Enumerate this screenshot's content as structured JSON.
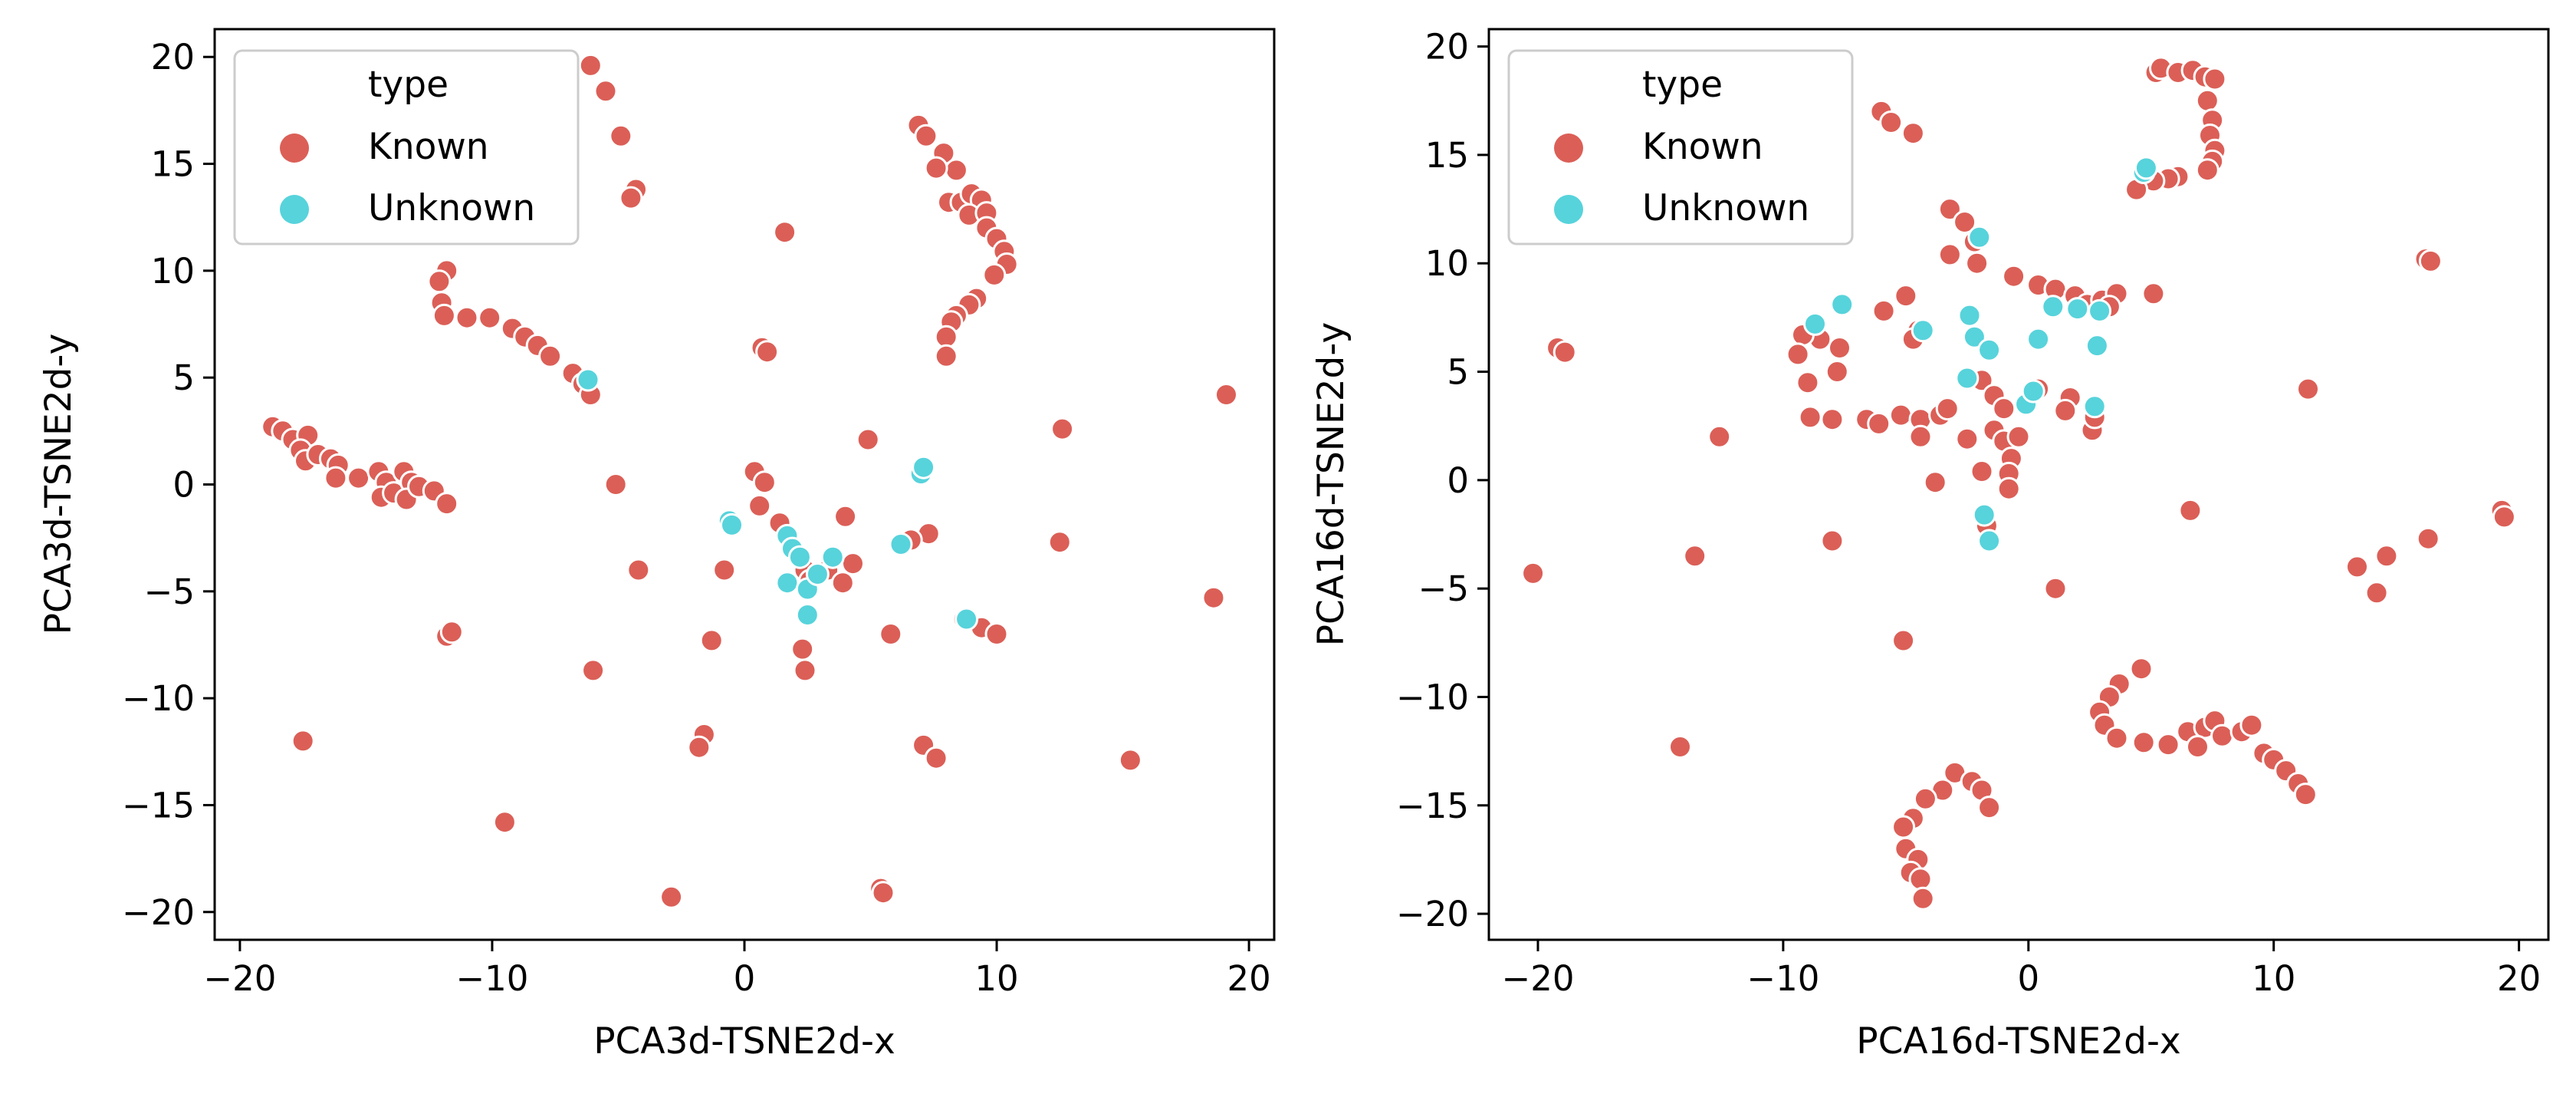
{
  "chart_data": [
    {
      "type": "scatter",
      "xlabel": "PCA3d-TSNE2d-x",
      "ylabel": "PCA3d-TSNE2d-y",
      "xlim": [
        -21,
        21
      ],
      "ylim": [
        -21.3,
        21.3
      ],
      "xticks": [
        -20,
        -10,
        0,
        10,
        20
      ],
      "xtick_labels": [
        "−20",
        "−10",
        "0",
        "10",
        "20"
      ],
      "yticks": [
        20,
        15,
        10,
        5,
        0,
        -5,
        -10,
        -15,
        -20
      ],
      "ytick_labels": [
        "20",
        "15",
        "10",
        "5",
        "0",
        "−5",
        "−10",
        "−15",
        "−20"
      ],
      "legend": {
        "title": "type",
        "placement": "top-left",
        "entries": [
          "Known",
          "Unknown"
        ]
      },
      "series": [
        {
          "name": "Known",
          "color": "#db5f57",
          "points": [
            [
              -6.1,
              19.6
            ],
            [
              -5.5,
              18.4
            ],
            [
              -4.9,
              16.3
            ],
            [
              -4.3,
              13.8
            ],
            [
              -4.5,
              13.4
            ],
            [
              1.6,
              11.8
            ],
            [
              -11.8,
              10.0
            ],
            [
              -12.1,
              9.5
            ],
            [
              -12.0,
              8.5
            ],
            [
              -11.9,
              7.9
            ],
            [
              -11.0,
              7.8
            ],
            [
              -10.1,
              7.8
            ],
            [
              -9.2,
              7.3
            ],
            [
              -8.7,
              6.9
            ],
            [
              -8.2,
              6.5
            ],
            [
              -7.7,
              6.0
            ],
            [
              -6.8,
              5.2
            ],
            [
              -6.4,
              4.7
            ],
            [
              -6.1,
              4.2
            ],
            [
              0.7,
              6.4
            ],
            [
              0.9,
              6.2
            ],
            [
              -18.7,
              2.7
            ],
            [
              -18.3,
              2.5
            ],
            [
              -17.9,
              2.1
            ],
            [
              -17.3,
              2.3
            ],
            [
              -17.6,
              1.6
            ],
            [
              -17.4,
              1.1
            ],
            [
              -16.9,
              1.4
            ],
            [
              -16.4,
              1.2
            ],
            [
              -16.1,
              0.9
            ],
            [
              -16.2,
              0.3
            ],
            [
              -15.3,
              0.3
            ],
            [
              -14.5,
              0.6
            ],
            [
              -14.2,
              0.1
            ],
            [
              -14.4,
              -0.6
            ],
            [
              -13.9,
              -0.4
            ],
            [
              -13.5,
              0.6
            ],
            [
              -13.2,
              0.1
            ],
            [
              -13.4,
              -0.7
            ],
            [
              -12.9,
              -0.1
            ],
            [
              -12.3,
              -0.3
            ],
            [
              -11.8,
              -0.9
            ],
            [
              -11.8,
              -7.1
            ],
            [
              -11.6,
              -6.9
            ],
            [
              6.9,
              16.8
            ],
            [
              7.2,
              16.3
            ],
            [
              7.6,
              14.8
            ],
            [
              7.9,
              15.5
            ],
            [
              8.4,
              14.7
            ],
            [
              7.6,
              14.8
            ],
            [
              8.1,
              13.2
            ],
            [
              8.6,
              13.2
            ],
            [
              9.0,
              13.6
            ],
            [
              9.4,
              13.3
            ],
            [
              8.9,
              12.6
            ],
            [
              9.6,
              12.7
            ],
            [
              9.6,
              12.0
            ],
            [
              10.0,
              11.5
            ],
            [
              10.3,
              10.9
            ],
            [
              10.4,
              10.3
            ],
            [
              9.9,
              9.8
            ],
            [
              9.2,
              8.7
            ],
            [
              8.9,
              8.4
            ],
            [
              8.4,
              7.9
            ],
            [
              8.2,
              7.6
            ],
            [
              8.0,
              6.9
            ],
            [
              8.0,
              6.0
            ],
            [
              4.9,
              2.1
            ],
            [
              12.6,
              2.6
            ],
            [
              19.1,
              4.2
            ],
            [
              0.4,
              0.6
            ],
            [
              0.8,
              0.1
            ],
            [
              0.6,
              -1.0
            ],
            [
              1.4,
              -1.8
            ],
            [
              -5.1,
              0.0
            ],
            [
              -4.2,
              -4.0
            ],
            [
              -0.8,
              -4.0
            ],
            [
              2.2,
              -3.3
            ],
            [
              2.4,
              -4.0
            ],
            [
              2.6,
              -4.5
            ],
            [
              3.3,
              -4.0
            ],
            [
              3.9,
              -4.6
            ],
            [
              4.3,
              -3.7
            ],
            [
              4.0,
              -1.5
            ],
            [
              2.3,
              -7.7
            ],
            [
              2.4,
              -8.7
            ],
            [
              7.3,
              -2.3
            ],
            [
              6.6,
              -2.6
            ],
            [
              12.5,
              -2.7
            ],
            [
              8.7,
              -6.3
            ],
            [
              9.4,
              -6.7
            ],
            [
              10.0,
              -7.0
            ],
            [
              5.8,
              -7.0
            ],
            [
              18.6,
              -5.3
            ],
            [
              -6.0,
              -8.7
            ],
            [
              -1.3,
              -7.3
            ],
            [
              -17.5,
              -12.0
            ],
            [
              -1.6,
              -11.7
            ],
            [
              -1.8,
              -12.3
            ],
            [
              7.1,
              -12.2
            ],
            [
              7.6,
              -12.8
            ],
            [
              15.3,
              -12.9
            ],
            [
              -9.5,
              -15.8
            ],
            [
              -2.9,
              -19.3
            ],
            [
              5.4,
              -18.9
            ],
            [
              5.5,
              -19.1
            ]
          ]
        },
        {
          "name": "Unknown",
          "color": "#57d3db",
          "points": [
            [
              -6.2,
              4.9
            ],
            [
              -0.6,
              -1.7
            ],
            [
              -0.5,
              -1.9
            ],
            [
              1.7,
              -2.4
            ],
            [
              1.9,
              -3.0
            ],
            [
              2.2,
              -3.4
            ],
            [
              1.7,
              -4.6
            ],
            [
              2.5,
              -4.9
            ],
            [
              2.9,
              -4.2
            ],
            [
              3.5,
              -3.4
            ],
            [
              2.5,
              -6.1
            ],
            [
              7.0,
              0.5
            ],
            [
              7.1,
              0.8
            ],
            [
              6.2,
              -2.8
            ],
            [
              8.8,
              -6.3
            ]
          ]
        }
      ]
    },
    {
      "type": "scatter",
      "xlabel": "PCA16d-TSNE2d-x",
      "ylabel": "PCA16d-TSNE2d-y",
      "xlim": [
        -22,
        21.2
      ],
      "ylim": [
        -21.2,
        20.8
      ],
      "xticks": [
        -20,
        -10,
        0,
        10,
        20
      ],
      "xtick_labels": [
        "−20",
        "−10",
        "0",
        "10",
        "20"
      ],
      "yticks": [
        20,
        15,
        10,
        5,
        0,
        -5,
        -10,
        -15,
        -20
      ],
      "ytick_labels": [
        "20",
        "15",
        "10",
        "5",
        "0",
        "−5",
        "−10",
        "−15",
        "−20"
      ],
      "legend": {
        "title": "type",
        "placement": "top-left",
        "entries": [
          "Known",
          "Unknown"
        ]
      },
      "series": [
        {
          "name": "Known",
          "color": "#db5f57",
          "points": [
            [
              5.2,
              18.8
            ],
            [
              5.4,
              19.0
            ],
            [
              6.1,
              18.8
            ],
            [
              6.7,
              18.9
            ],
            [
              7.2,
              18.6
            ],
            [
              7.6,
              18.5
            ],
            [
              7.3,
              17.5
            ],
            [
              7.5,
              16.6
            ],
            [
              7.4,
              15.9
            ],
            [
              7.6,
              15.2
            ],
            [
              7.5,
              14.7
            ],
            [
              7.3,
              14.3
            ],
            [
              6.1,
              14.0
            ],
            [
              5.7,
              13.9
            ],
            [
              5.1,
              13.8
            ],
            [
              4.4,
              13.4
            ],
            [
              -6.0,
              17.0
            ],
            [
              -5.6,
              16.5
            ],
            [
              -4.7,
              16.0
            ],
            [
              16.2,
              10.2
            ],
            [
              16.4,
              10.1
            ],
            [
              11.4,
              4.2
            ],
            [
              -3.2,
              12.5
            ],
            [
              -2.6,
              11.9
            ],
            [
              -2.2,
              11.0
            ],
            [
              -2.1,
              10.0
            ],
            [
              -3.2,
              10.4
            ],
            [
              -0.6,
              9.4
            ],
            [
              0.4,
              9.0
            ],
            [
              1.1,
              8.8
            ],
            [
              1.9,
              8.5
            ],
            [
              2.4,
              8.1
            ],
            [
              3.0,
              8.3
            ],
            [
              3.6,
              8.6
            ],
            [
              5.1,
              8.6
            ],
            [
              3.3,
              8.0
            ],
            [
              -5.0,
              8.5
            ],
            [
              -4.5,
              6.9
            ],
            [
              -4.7,
              6.5
            ],
            [
              -5.9,
              7.8
            ],
            [
              -7.7,
              6.1
            ],
            [
              -8.5,
              6.5
            ],
            [
              -9.2,
              6.7
            ],
            [
              -9.4,
              5.8
            ],
            [
              -7.8,
              5.0
            ],
            [
              -9.0,
              4.5
            ],
            [
              -8.9,
              2.9
            ],
            [
              -8.0,
              2.8
            ],
            [
              -6.6,
              2.8
            ],
            [
              -6.1,
              2.6
            ],
            [
              -5.2,
              3.0
            ],
            [
              -4.4,
              2.8
            ],
            [
              -4.4,
              2.0
            ],
            [
              -3.6,
              3.0
            ],
            [
              -3.3,
              3.3
            ],
            [
              -2.5,
              1.9
            ],
            [
              -1.9,
              4.6
            ],
            [
              -1.4,
              3.9
            ],
            [
              -1.0,
              3.3
            ],
            [
              -1.4,
              2.3
            ],
            [
              -1.0,
              1.8
            ],
            [
              -0.7,
              1.0
            ],
            [
              -0.8,
              0.3
            ],
            [
              -0.8,
              -0.4
            ],
            [
              -0.4,
              2.0
            ],
            [
              0.4,
              4.2
            ],
            [
              1.7,
              3.8
            ],
            [
              1.5,
              3.2
            ],
            [
              2.6,
              2.3
            ],
            [
              2.7,
              2.9
            ],
            [
              -3.8,
              -0.1
            ],
            [
              -1.9,
              0.4
            ],
            [
              -1.7,
              -2.1
            ],
            [
              -12.6,
              2.0
            ],
            [
              -19.2,
              6.1
            ],
            [
              -18.9,
              5.9
            ],
            [
              -20.2,
              -4.3
            ],
            [
              -13.6,
              -3.5
            ],
            [
              -8.0,
              -2.8
            ],
            [
              1.1,
              -5.0
            ],
            [
              6.6,
              -1.4
            ],
            [
              -5.1,
              -7.4
            ],
            [
              13.4,
              -4.0
            ],
            [
              14.2,
              -5.2
            ],
            [
              14.6,
              -3.5
            ],
            [
              16.3,
              -2.7
            ],
            [
              19.3,
              -1.4
            ],
            [
              19.4,
              -1.7
            ],
            [
              4.6,
              -8.7
            ],
            [
              3.7,
              -9.4
            ],
            [
              3.3,
              -10.0
            ],
            [
              2.9,
              -10.7
            ],
            [
              3.1,
              -11.3
            ],
            [
              3.6,
              -11.9
            ],
            [
              4.7,
              -12.1
            ],
            [
              5.7,
              -12.2
            ],
            [
              6.5,
              -11.6
            ],
            [
              7.2,
              -11.4
            ],
            [
              7.6,
              -11.1
            ],
            [
              7.9,
              -11.8
            ],
            [
              8.7,
              -11.6
            ],
            [
              9.1,
              -11.3
            ],
            [
              9.6,
              -12.6
            ],
            [
              10.0,
              -12.9
            ],
            [
              10.5,
              -13.4
            ],
            [
              11.0,
              -14.0
            ],
            [
              11.3,
              -14.5
            ],
            [
              6.9,
              -12.3
            ],
            [
              -14.2,
              -12.3
            ],
            [
              -3.0,
              -13.5
            ],
            [
              -2.3,
              -13.9
            ],
            [
              -3.5,
              -14.3
            ],
            [
              -4.2,
              -14.7
            ],
            [
              -1.9,
              -14.3
            ],
            [
              -1.6,
              -15.1
            ],
            [
              -4.7,
              -15.6
            ],
            [
              -5.1,
              -16.0
            ],
            [
              -5.0,
              -17.0
            ],
            [
              -4.5,
              -17.5
            ],
            [
              -4.8,
              -18.1
            ],
            [
              -4.4,
              -18.4
            ],
            [
              -4.3,
              -19.3
            ]
          ]
        },
        {
          "name": "Unknown",
          "color": "#57d3db",
          "points": [
            [
              -7.6,
              8.1
            ],
            [
              -8.7,
              7.2
            ],
            [
              -4.3,
              6.9
            ],
            [
              -2.4,
              7.6
            ],
            [
              -2.2,
              6.6
            ],
            [
              -2.0,
              11.2
            ],
            [
              -1.6,
              6.0
            ],
            [
              -2.5,
              4.7
            ],
            [
              -0.1,
              3.5
            ],
            [
              0.2,
              4.1
            ],
            [
              0.4,
              6.5
            ],
            [
              2.0,
              7.9
            ],
            [
              1.0,
              8.0
            ],
            [
              2.8,
              6.2
            ],
            [
              2.7,
              3.4
            ],
            [
              2.9,
              7.8
            ],
            [
              4.7,
              14.2
            ],
            [
              4.8,
              14.4
            ],
            [
              -1.8,
              -1.6
            ],
            [
              -1.6,
              -2.8
            ]
          ]
        }
      ]
    }
  ]
}
